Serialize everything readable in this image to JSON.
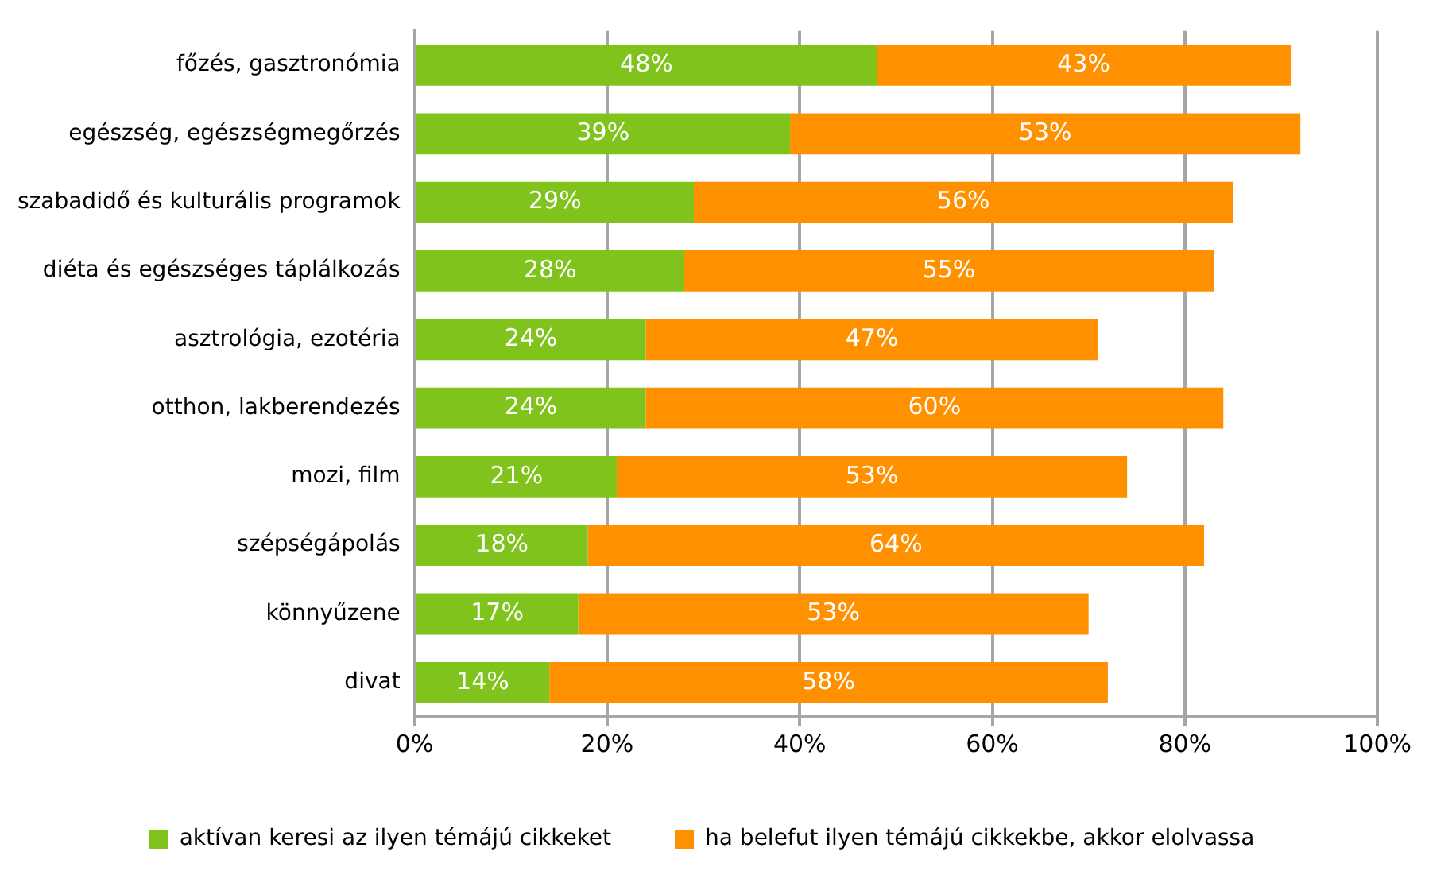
{
  "chart_data": {
    "type": "bar",
    "orientation": "horizontal",
    "stacked": true,
    "categories": [
      "főzés, gasztronómia",
      "egészség, egészségmegőrzés",
      "szabadidő és kulturális programok",
      "diéta és egészséges táplálkozás",
      "asztrológia, ezotéria",
      "otthon, lakberendezés",
      "mozi, film",
      "szépségápolás",
      "könnyűzene",
      "divat"
    ],
    "series": [
      {
        "name": "aktívan keresi az ilyen témájú cikkeket",
        "color": "#7fc31c",
        "values": [
          48,
          39,
          29,
          28,
          24,
          24,
          21,
          18,
          17,
          14
        ],
        "value_labels": [
          "48%",
          "39%",
          "29%",
          "28%",
          "24%",
          "24%",
          "21%",
          "18%",
          "17%",
          "14%"
        ]
      },
      {
        "name": "ha belefut ilyen témájú cikkekbe, akkor elolvassa",
        "color": "#ff9000",
        "values": [
          43,
          53,
          56,
          55,
          47,
          60,
          53,
          64,
          53,
          58
        ],
        "value_labels": [
          "43%",
          "53%",
          "56%",
          "55%",
          "47%",
          "60%",
          "53%",
          "64%",
          "53%",
          "58%"
        ]
      }
    ],
    "xlim": [
      0,
      100
    ],
    "xticks": [
      {
        "value": 0,
        "label": "0%"
      },
      {
        "value": 20,
        "label": "20%"
      },
      {
        "value": 40,
        "label": "40%"
      },
      {
        "value": 60,
        "label": "60%"
      },
      {
        "value": 80,
        "label": "80%"
      },
      {
        "value": 100,
        "label": "100%"
      }
    ],
    "grid": "x",
    "legend": "bottom"
  }
}
